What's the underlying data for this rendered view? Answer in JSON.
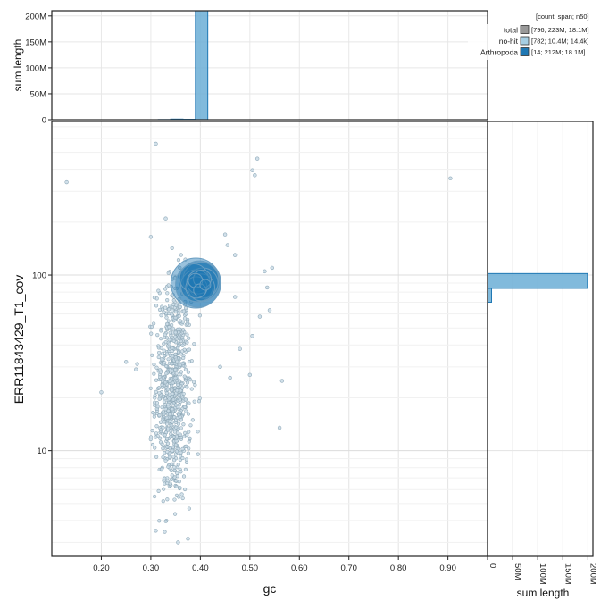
{
  "chart_data": {
    "type": "scatter",
    "main": {
      "xlabel": "gc",
      "ylabel": "ERR11843429_T1_cov",
      "xlim": [
        0.1,
        0.98
      ],
      "ylim": [
        2.5,
        750
      ],
      "yscale": "log",
      "xticks": [
        "0.20",
        "0.30",
        "0.40",
        "0.50",
        "0.60",
        "0.70",
        "0.80",
        "0.90"
      ],
      "yticks": [
        "10",
        "100"
      ],
      "grid": true
    },
    "top_histogram": {
      "ylabel": "sum length",
      "yticks": [
        "0",
        "50M",
        "100M",
        "150M",
        "200M"
      ],
      "ymax": 210000000,
      "bins": [
        {
          "x0": 0.315,
          "x1": 0.34,
          "value": 300000
        },
        {
          "x0": 0.34,
          "x1": 0.365,
          "value": 1200000
        },
        {
          "x0": 0.365,
          "x1": 0.39,
          "value": 800000
        },
        {
          "x0": 0.39,
          "x1": 0.415,
          "value": 220000000
        }
      ]
    },
    "right_histogram": {
      "xlabel": "sum length",
      "xticks": [
        "0",
        "50M",
        "100M",
        "150M",
        "200M"
      ],
      "xmax": 210000000,
      "bins": [
        {
          "y0": 70,
          "y1": 84,
          "value": 8000000
        },
        {
          "y0": 84,
          "y1": 102,
          "value": 199000000
        }
      ]
    },
    "legend": {
      "placement": "top-right",
      "header": "[count; span; n50]",
      "entries": [
        {
          "name": "total",
          "value": "[796; 223M; 18.1M]",
          "color": "#999999"
        },
        {
          "name": "no-hit",
          "value": "[782; 10.4M; 14.4k]",
          "color": "#a6cee3"
        },
        {
          "name": "Arthropoda",
          "value": "[14; 212M; 18.1M]",
          "color": "#1f78b4"
        }
      ]
    },
    "series": [
      {
        "name": "Arthropoda",
        "color": "#1f78b4",
        "points": [
          {
            "x": 0.391,
            "y": 90,
            "r": 28
          },
          {
            "x": 0.395,
            "y": 88,
            "r": 25
          },
          {
            "x": 0.398,
            "y": 92,
            "r": 23
          },
          {
            "x": 0.401,
            "y": 94,
            "r": 20
          },
          {
            "x": 0.393,
            "y": 87,
            "r": 18
          },
          {
            "x": 0.405,
            "y": 90,
            "r": 17
          },
          {
            "x": 0.387,
            "y": 96,
            "r": 16
          },
          {
            "x": 0.402,
            "y": 85,
            "r": 15
          },
          {
            "x": 0.396,
            "y": 91,
            "r": 13
          },
          {
            "x": 0.392,
            "y": 85,
            "r": 12
          },
          {
            "x": 0.404,
            "y": 95,
            "r": 10
          },
          {
            "x": 0.39,
            "y": 93,
            "r": 8
          },
          {
            "x": 0.399,
            "y": 82,
            "r": 7
          },
          {
            "x": 0.41,
            "y": 88,
            "r": 6
          }
        ]
      },
      {
        "name": "no-hit",
        "color": "#a6cee3",
        "outliers": [
          {
            "x": 0.13,
            "y": 338
          },
          {
            "x": 0.2,
            "y": 21.5
          },
          {
            "x": 0.31,
            "y": 560
          },
          {
            "x": 0.515,
            "y": 460
          },
          {
            "x": 0.505,
            "y": 395
          },
          {
            "x": 0.51,
            "y": 370
          },
          {
            "x": 0.905,
            "y": 355
          },
          {
            "x": 0.455,
            "y": 148
          },
          {
            "x": 0.47,
            "y": 130
          },
          {
            "x": 0.545,
            "y": 110
          },
          {
            "x": 0.53,
            "y": 105
          },
          {
            "x": 0.535,
            "y": 85
          },
          {
            "x": 0.54,
            "y": 63
          },
          {
            "x": 0.565,
            "y": 25
          },
          {
            "x": 0.56,
            "y": 13.5
          },
          {
            "x": 0.505,
            "y": 45
          },
          {
            "x": 0.48,
            "y": 38
          },
          {
            "x": 0.46,
            "y": 26
          },
          {
            "x": 0.44,
            "y": 30
          },
          {
            "x": 0.47,
            "y": 75
          },
          {
            "x": 0.45,
            "y": 170
          },
          {
            "x": 0.52,
            "y": 58
          },
          {
            "x": 0.5,
            "y": 27
          },
          {
            "x": 0.31,
            "y": 3.5
          },
          {
            "x": 0.355,
            "y": 3.0
          },
          {
            "x": 0.375,
            "y": 3.15
          },
          {
            "x": 0.25,
            "y": 32
          },
          {
            "x": 0.27,
            "y": 29
          },
          {
            "x": 0.3,
            "y": 165
          },
          {
            "x": 0.33,
            "y": 210
          }
        ]
      }
    ]
  }
}
